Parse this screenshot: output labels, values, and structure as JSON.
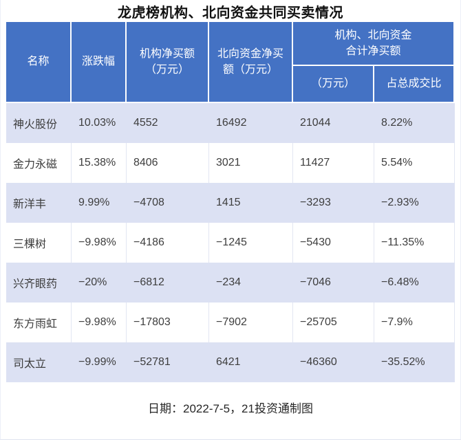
{
  "title": "龙虎榜机构、北向资金共同买卖情况",
  "table": {
    "headers": {
      "name": "名称",
      "change": "涨跌幅",
      "inst_line1": "机构净买额",
      "inst_line2": "（万元）",
      "north_line1": "北向资金净买",
      "north_line2": "额（万元）",
      "combined_line1": "机构、北向资金",
      "combined_line2": "合计净买额",
      "combined_unit": "（万元）",
      "combined_ratio": "占总成交比"
    },
    "rows": [
      {
        "name": "神火股份",
        "change": "10.03%",
        "inst": "4552",
        "north": "16492",
        "total": "21044",
        "ratio": "8.22%"
      },
      {
        "name": "金力永磁",
        "change": "15.38%",
        "inst": "8406",
        "north": "3021",
        "total": "11427",
        "ratio": "5.54%"
      },
      {
        "name": "新洋丰",
        "change": "9.99%",
        "inst": "−4708",
        "north": "1415",
        "total": "−3293",
        "ratio": "−2.93%"
      },
      {
        "name": "三棵树",
        "change": "−9.98%",
        "inst": "−4186",
        "north": "−1245",
        "total": "−5430",
        "ratio": "−11.35%"
      },
      {
        "name": "兴齐眼药",
        "change": "−20%",
        "inst": "−6812",
        "north": "−234",
        "total": "−7046",
        "ratio": "−6.48%"
      },
      {
        "name": "东方雨虹",
        "change": "−9.98%",
        "inst": "−17803",
        "north": "−7902",
        "total": "−25705",
        "ratio": "−7.9%"
      },
      {
        "name": "司太立",
        "change": "−9.99%",
        "inst": "−52781",
        "north": "6421",
        "total": "−46360",
        "ratio": "−35.52%"
      }
    ]
  },
  "footer": {
    "note": "日期：2022-7-5，21投资通制图"
  },
  "colors": {
    "header_bg": "#4472C4",
    "header_text": "#FFFFFF",
    "row_alt_bg": "#DCE1F3",
    "row_bg": "#FFFFFF",
    "cell_text": "#3D3D3D",
    "white_row_divider": "#E2E6F2"
  },
  "chart_data": {
    "type": "table",
    "title": "龙虎榜机构、北向资金共同买卖情况",
    "columns": [
      "名称",
      "涨跌幅",
      "机构净买额（万元）",
      "北向资金净买额（万元）",
      "机构、北向资金合计净买额（万元）",
      "机构、北向资金合计净买额占总成交比"
    ],
    "rows": [
      [
        "神火股份",
        "10.03%",
        4552,
        16492,
        21044,
        "8.22%"
      ],
      [
        "金力永磁",
        "15.38%",
        8406,
        3021,
        11427,
        "5.54%"
      ],
      [
        "新洋丰",
        "9.99%",
        -4708,
        1415,
        -3293,
        "-2.93%"
      ],
      [
        "三棵树",
        "-9.98%",
        -4186,
        -1245,
        -5430,
        "-11.35%"
      ],
      [
        "兴齐眼药",
        "-20%",
        -6812,
        -234,
        -7046,
        "-6.48%"
      ],
      [
        "东方雨虹",
        "-9.98%",
        -17803,
        -7902,
        -25705,
        "-7.9%"
      ],
      [
        "司太立",
        "-9.99%",
        -52781,
        6421,
        -46360,
        "-35.52%"
      ]
    ],
    "note": "日期：2022-7-5，21投资通制图",
    "layout": {
      "zebra_striping": true,
      "header_rows": 2,
      "footer_note_row": true
    }
  }
}
